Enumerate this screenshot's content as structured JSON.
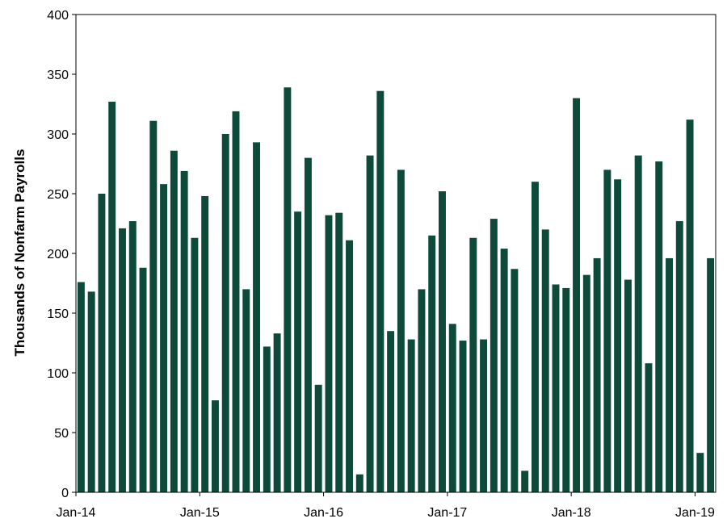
{
  "chart_data": {
    "type": "bar",
    "title": "",
    "xlabel": "",
    "ylabel": "Thousands of Nonfarm Payrolls",
    "ylim": [
      0,
      400
    ],
    "yticks": [
      0,
      50,
      100,
      150,
      200,
      250,
      300,
      350,
      400
    ],
    "x_tick_labels": [
      "Jan-14",
      "Jan-15",
      "Jan-16",
      "Jan-17",
      "Jan-18",
      "Jan-19"
    ],
    "x_tick_indices": [
      0,
      12,
      24,
      36,
      48,
      60
    ],
    "bar_color": "#0d4a3a",
    "grid": false,
    "values": [
      176,
      168,
      250,
      327,
      221,
      227,
      188,
      311,
      258,
      286,
      269,
      213,
      248,
      77,
      300,
      319,
      170,
      293,
      122,
      133,
      339,
      235,
      280,
      90,
      232,
      234,
      211,
      15,
      282,
      336,
      135,
      270,
      128,
      170,
      215,
      252,
      141,
      127,
      213,
      128,
      229,
      204,
      187,
      18,
      260,
      220,
      174,
      171,
      330,
      182,
      196,
      270,
      262,
      178,
      282,
      108,
      277,
      196,
      227,
      312,
      33,
      196
    ]
  }
}
